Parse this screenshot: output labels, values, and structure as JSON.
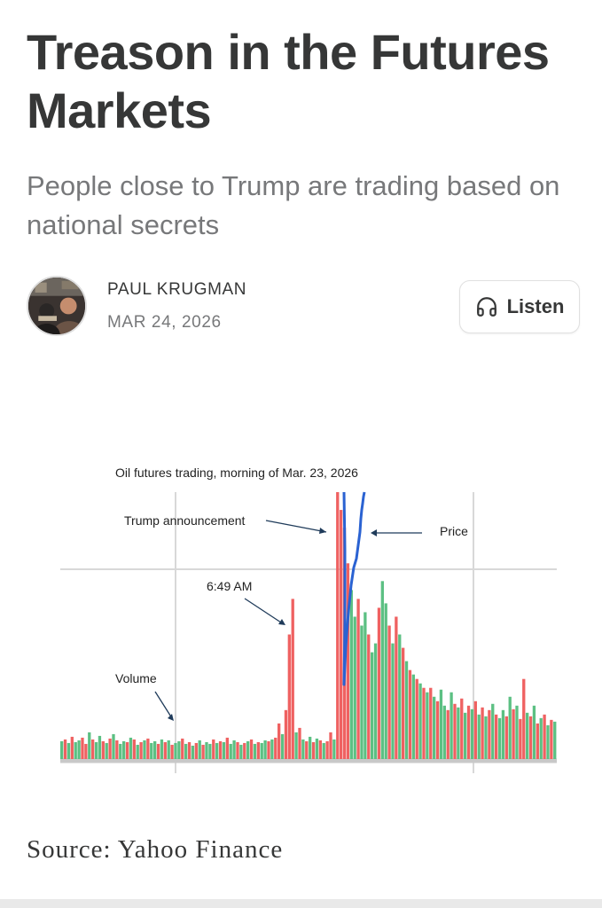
{
  "article": {
    "title": "Treason in the Futures Markets",
    "subtitle": "People close to Trump are trading based on national secrets",
    "author": "PAUL KRUGMAN",
    "date": "MAR 24, 2026",
    "listen_label": "Listen",
    "listen_icon": "headphones-icon",
    "source": "Source: Yahoo Finance"
  },
  "colors": {
    "text": "#363737",
    "muted": "#77787a",
    "up": "#5cc083",
    "down": "#ef6161",
    "price": "#2a62d2",
    "grid": "#d8d8d8"
  },
  "chart_data": {
    "type": "bar",
    "title": "Oil futures trading, morning of Mar. 23, 2026",
    "xlabel": "",
    "ylabel": "",
    "grid": true,
    "annotations": [
      "Trump announcement",
      "6:49 AM",
      "Volume",
      "Price"
    ],
    "series": [
      {
        "values": [
          20,
          22,
          18,
          25,
          19,
          21,
          24,
          17,
          30,
          22,
          19,
          26,
          20,
          18,
          23,
          28,
          21,
          17,
          20,
          19,
          24,
          22,
          16,
          19,
          21,
          23,
          18,
          20,
          17,
          22,
          19,
          21,
          16,
          18,
          20,
          23,
          17,
          19,
          15,
          18,
          21,
          16,
          19,
          17,
          22,
          18,
          20,
          19,
          24,
          17,
          21,
          19,
          16,
          18,
          20,
          22,
          17,
          19,
          18,
          21,
          20,
          22,
          24,
          40,
          28,
          55,
          140,
          180,
          30,
          35,
          22,
          20,
          25,
          19,
          23,
          21,
          18,
          20,
          30,
          22,
          300,
          280,
          260,
          220,
          190,
          160,
          180,
          150,
          165,
          140,
          120,
          130,
          170,
          200,
          175,
          150,
          130,
          160,
          140,
          125,
          110,
          100,
          95,
          90,
          85,
          80,
          75,
          80,
          70,
          65,
          78,
          60,
          55,
          75,
          62,
          58,
          68,
          52,
          60,
          56,
          65,
          50,
          58,
          48,
          55,
          62,
          50,
          46,
          55,
          48,
          70,
          56,
          60,
          45,
          90,
          52,
          48,
          60,
          40,
          46,
          50,
          38,
          44,
          42
        ],
        "colors": [
          "u",
          "d",
          "u",
          "d",
          "u",
          "u",
          "d",
          "d",
          "u",
          "d",
          "u",
          "u",
          "d",
          "u",
          "d",
          "u",
          "d",
          "u",
          "u",
          "d",
          "u",
          "d",
          "u",
          "d",
          "u",
          "d",
          "u",
          "u",
          "d",
          "u",
          "d",
          "u",
          "d",
          "u",
          "u",
          "d",
          "u",
          "d",
          "u",
          "d",
          "u",
          "d",
          "u",
          "u",
          "d",
          "u",
          "d",
          "u",
          "d",
          "u",
          "u",
          "d",
          "u",
          "d",
          "u",
          "d",
          "u",
          "d",
          "u",
          "u",
          "d",
          "u",
          "d",
          "d",
          "u",
          "d",
          "d",
          "d",
          "u",
          "d",
          "u",
          "d",
          "u",
          "d",
          "u",
          "d",
          "u",
          "d",
          "d",
          "u",
          "d",
          "d",
          "d",
          "d",
          "u",
          "u",
          "d",
          "u",
          "u",
          "d",
          "u",
          "u",
          "d",
          "u",
          "u",
          "d",
          "u",
          "d",
          "u",
          "d",
          "u",
          "d",
          "u",
          "d",
          "u",
          "d",
          "u",
          "d",
          "u",
          "d",
          "u",
          "u",
          "d",
          "u",
          "d",
          "u",
          "d",
          "u",
          "d",
          "u",
          "d",
          "u",
          "d",
          "u",
          "d",
          "u",
          "d",
          "u",
          "u",
          "d",
          "u",
          "d",
          "u",
          "d",
          "d",
          "u",
          "d",
          "u",
          "d",
          "u",
          "d",
          "u",
          "d",
          "u"
        ]
      }
    ],
    "price": {
      "name": "Price",
      "values": [
        140,
        230,
        300,
        330,
        310,
        290,
        270,
        260,
        255,
        250,
        240,
        235,
        225,
        220,
        200,
        180,
        170,
        160
      ]
    }
  }
}
